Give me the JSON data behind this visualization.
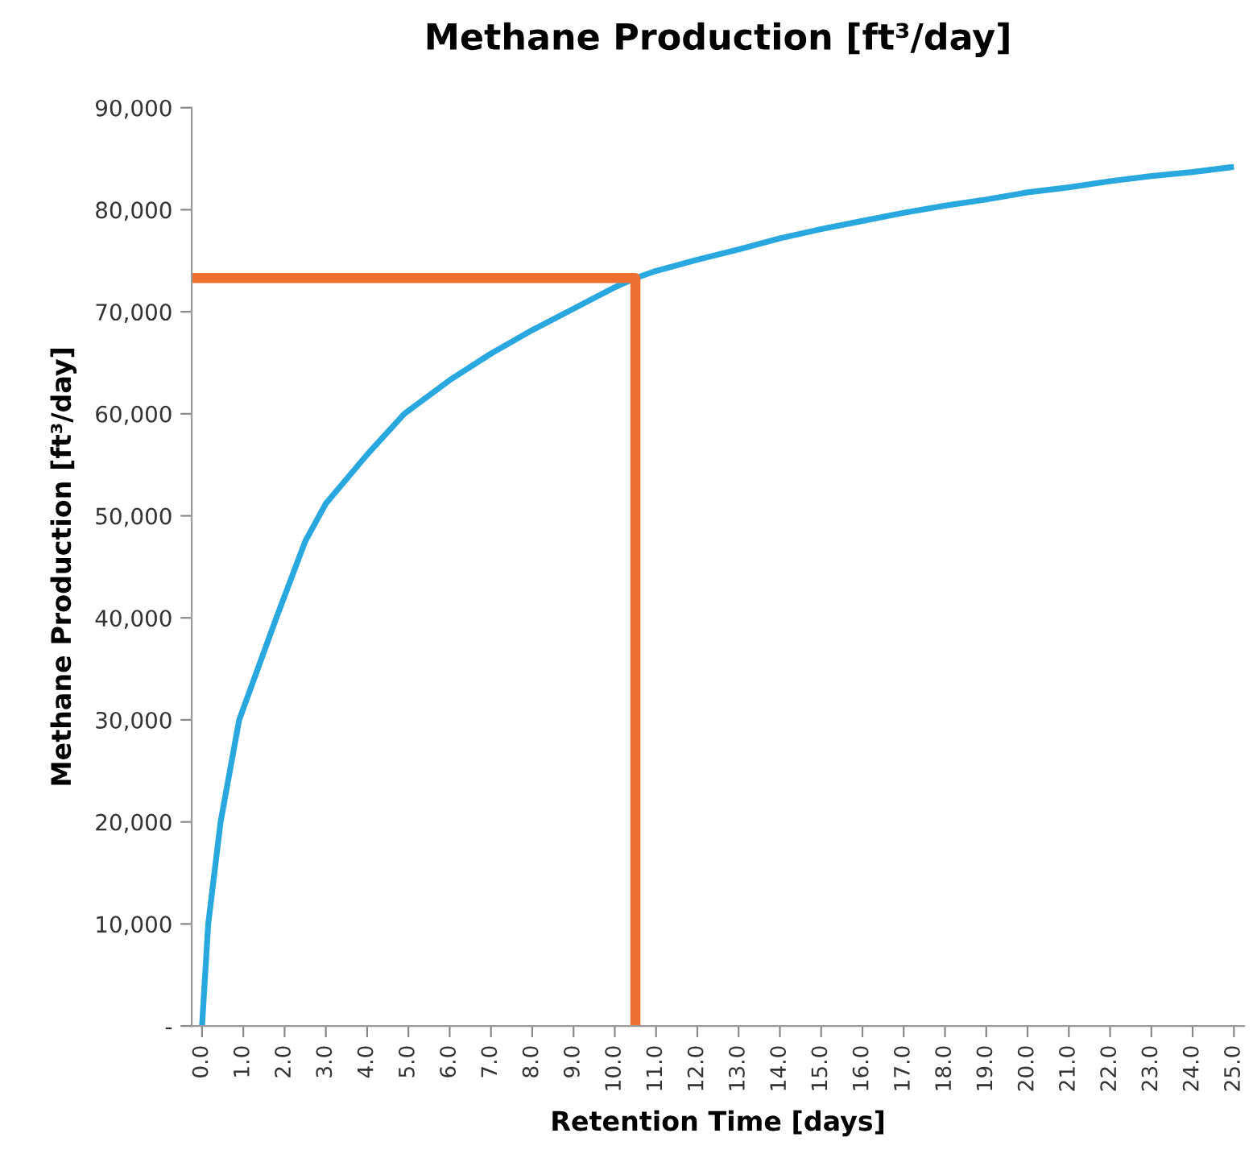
{
  "chart_data": {
    "type": "line",
    "title": "Methane Production [ft³/day]",
    "xlabel": "Retention Time [days]",
    "ylabel": "Methane Production [ft³/day]",
    "series": [
      {
        "color": "#29a8e0",
        "x": [
          0,
          0.15,
          0.45,
          0.9,
          1.8,
          2.5,
          3.0,
          4.0,
          4.9,
          6.0,
          7.0,
          8.0,
          9.0,
          10.0,
          10.5,
          11.0,
          12.0,
          13.0,
          14.0,
          15.0,
          16.0,
          17.0,
          18.0,
          19.0,
          20.0,
          21.0,
          22.0,
          23.0,
          24.0,
          25.0
        ],
        "values": [
          0,
          10000,
          20000,
          30000,
          40000,
          47500,
          51200,
          56000,
          60000,
          63300,
          65900,
          68200,
          70300,
          72400,
          73300,
          74000,
          75100,
          76100,
          77200,
          78100,
          78900,
          79700,
          80400,
          81000,
          81700,
          82200,
          82800,
          83300,
          83700,
          84200
        ]
      },
      {
        "color": "#ed7031",
        "x": [
          -0.25,
          10.5,
          10.5
        ],
        "values": [
          73300,
          73300,
          0
        ]
      }
    ],
    "xlim": [
      -0.25,
      25.25
    ],
    "xticks": [
      {
        "value": 0,
        "label": "0.0"
      },
      {
        "value": 1,
        "label": "1.0"
      },
      {
        "value": 2,
        "label": "2.0"
      },
      {
        "value": 3,
        "label": "3.0"
      },
      {
        "value": 4,
        "label": "4.0"
      },
      {
        "value": 5,
        "label": "5.0"
      },
      {
        "value": 6,
        "label": "6.0"
      },
      {
        "value": 7,
        "label": "7.0"
      },
      {
        "value": 8,
        "label": "8.0"
      },
      {
        "value": 9,
        "label": "9.0"
      },
      {
        "value": 10,
        "label": "10.0"
      },
      {
        "value": 11,
        "label": "11.0"
      },
      {
        "value": 12,
        "label": "12.0"
      },
      {
        "value": 13,
        "label": "13.0"
      },
      {
        "value": 14,
        "label": "14.0"
      },
      {
        "value": 15,
        "label": "15.0"
      },
      {
        "value": 16,
        "label": "16.0"
      },
      {
        "value": 17,
        "label": "17.0"
      },
      {
        "value": 18,
        "label": "18.0"
      },
      {
        "value": 19,
        "label": "19.0"
      },
      {
        "value": 20,
        "label": "20.0"
      },
      {
        "value": 21,
        "label": "21.0"
      },
      {
        "value": 22,
        "label": "22.0"
      },
      {
        "value": 23,
        "label": "23.0"
      },
      {
        "value": 24,
        "label": "24.0"
      },
      {
        "value": 25,
        "label": "25.0"
      }
    ],
    "ylim": [
      0,
      90000
    ],
    "yticks": [
      {
        "value": 0,
        "label": "-"
      },
      {
        "value": 10000,
        "label": "10,000"
      },
      {
        "value": 20000,
        "label": "20,000"
      },
      {
        "value": 30000,
        "label": "30,000"
      },
      {
        "value": 40000,
        "label": "40,000"
      },
      {
        "value": 50000,
        "label": "50,000"
      },
      {
        "value": 60000,
        "label": "60,000"
      },
      {
        "value": 70000,
        "label": "70,000"
      },
      {
        "value": 80000,
        "label": "80,000"
      },
      {
        "value": 90000,
        "label": "90,000"
      }
    ],
    "grid": false,
    "legend": false
  }
}
